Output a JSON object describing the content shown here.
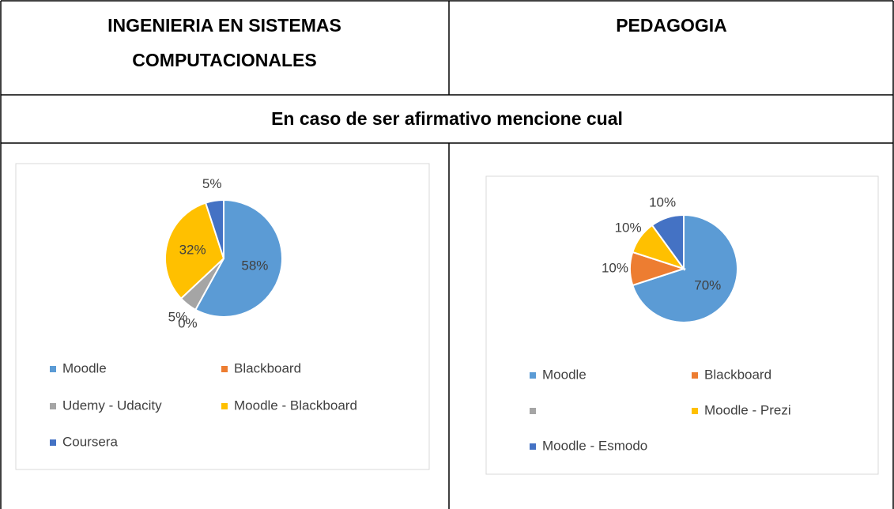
{
  "table": {
    "headers": [
      "INGENIERIA EN SISTEMAS COMPUTACIONALES",
      "PEDAGOGIA"
    ],
    "subtitle": "En caso de ser afirmativo mencione cual"
  },
  "charts": [
    {
      "type": "pie",
      "categories": [
        "Moodle",
        "Blackboard",
        "Udemy - Udacity",
        "Moodle - Blackboard",
        "Coursera"
      ],
      "values": [
        58,
        0,
        5,
        32,
        5
      ],
      "value_labels": [
        "58%",
        "0%",
        "5%",
        "32%",
        "5%"
      ],
      "colors": [
        "#5b9bd5",
        "#ed7d31",
        "#a5a5a5",
        "#ffc000",
        "#4472c4"
      ]
    },
    {
      "type": "pie",
      "categories": [
        "Moodle",
        "Blackboard",
        null,
        "Moodle - Prezi",
        "Moodle - Esmodo"
      ],
      "values": [
        70,
        10,
        0,
        10,
        10
      ],
      "value_labels": [
        "70%",
        "10%",
        null,
        "10%",
        "10%"
      ],
      "colors": [
        "#5b9bd5",
        "#ed7d31",
        "#a5a5a5",
        "#ffc000",
        "#4472c4"
      ]
    }
  ]
}
